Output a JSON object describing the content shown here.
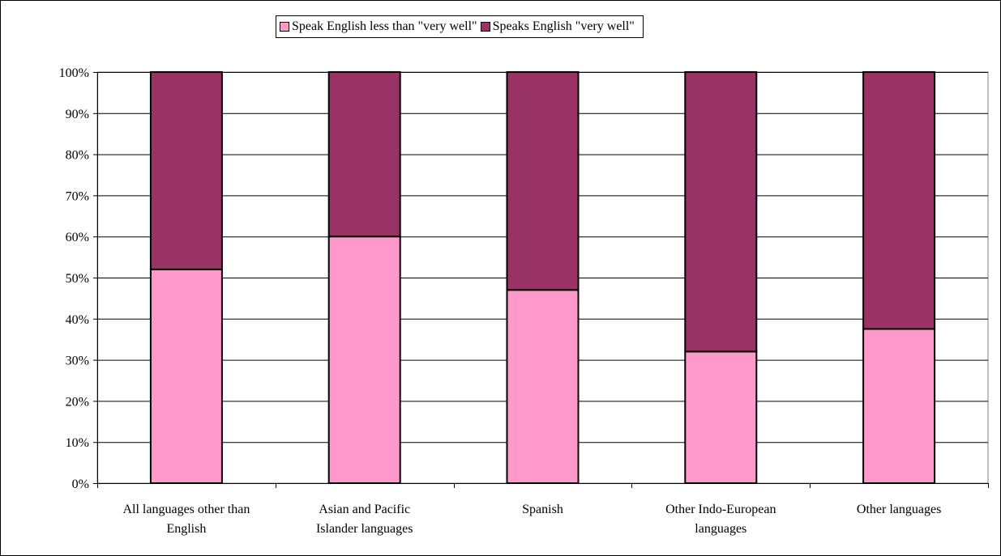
{
  "chart_data": {
    "type": "bar",
    "stacked": true,
    "percent_stacked": true,
    "categories": [
      [
        "All languages other than",
        "English"
      ],
      [
        "Asian and Pacific",
        "Islander languages"
      ],
      [
        "Spanish"
      ],
      [
        "Other Indo-European",
        "languages"
      ],
      [
        "Other languages"
      ]
    ],
    "series": [
      {
        "name": "Speak English less than \"very well\"",
        "color": "#ff99cc",
        "values": [
          52,
          60,
          47,
          32,
          37.5
        ]
      },
      {
        "name": "Speaks English \"very well\"",
        "color": "#993366",
        "values": [
          48,
          40,
          53,
          68,
          62.5
        ]
      }
    ],
    "ylim": [
      0,
      100
    ],
    "yticks": [
      "0%",
      "10%",
      "20%",
      "30%",
      "40%",
      "50%",
      "60%",
      "70%",
      "80%",
      "90%",
      "100%"
    ],
    "grid": true,
    "legend_position": "top-center"
  }
}
